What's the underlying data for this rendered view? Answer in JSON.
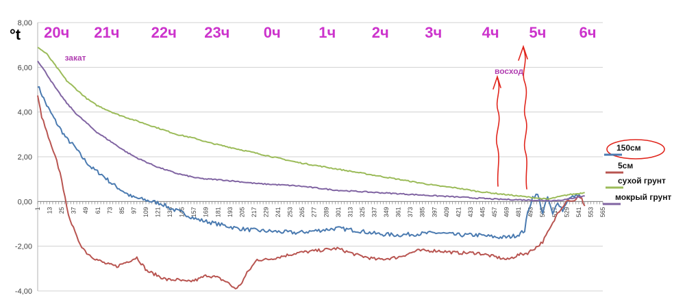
{
  "chart_data": {
    "type": "line",
    "ylabel": "°t",
    "ylim": [
      -4,
      8
    ],
    "yticks": [
      "8,00",
      "6,00",
      "4,00",
      "2,00",
      "0,00",
      "-2,00",
      "-4,00"
    ],
    "ytick_values": [
      8,
      6,
      4,
      2,
      0,
      -2,
      -4
    ],
    "xlim": [
      1,
      565
    ],
    "xticks": [
      1,
      13,
      25,
      37,
      49,
      61,
      73,
      85,
      97,
      109,
      121,
      133,
      145,
      157,
      169,
      181,
      193,
      205,
      217,
      229,
      241,
      253,
      265,
      277,
      289,
      301,
      313,
      325,
      337,
      349,
      361,
      373,
      385,
      397,
      409,
      421,
      433,
      445,
      457,
      469,
      481,
      493,
      505,
      517,
      529,
      541,
      553,
      565
    ],
    "hour_labels": [
      {
        "text": "20ч",
        "x": 20
      },
      {
        "text": "21ч",
        "x": 70
      },
      {
        "text": "22ч",
        "x": 127
      },
      {
        "text": "23ч",
        "x": 180
      },
      {
        "text": "0ч",
        "x": 235
      },
      {
        "text": "1ч",
        "x": 290
      },
      {
        "text": "2ч",
        "x": 343
      },
      {
        "text": "3ч",
        "x": 396
      },
      {
        "text": "4ч",
        "x": 453
      },
      {
        "text": "5ч",
        "x": 500
      },
      {
        "text": "6ч",
        "x": 550
      }
    ],
    "annotations": [
      {
        "text": "закат",
        "x": 28,
        "y": 6.3
      },
      {
        "text": "восход",
        "x": 457,
        "y": 5.7
      }
    ],
    "grid": true,
    "legend_position": "right",
    "series": [
      {
        "name": "150см",
        "color": "#4a7ab0",
        "x": [
          1,
          10,
          20,
          30,
          37,
          45,
          55,
          65,
          75,
          85,
          95,
          105,
          115,
          125,
          133,
          145,
          160,
          180,
          200,
          220,
          240,
          260,
          280,
          300,
          320,
          340,
          360,
          380,
          400,
          420,
          440,
          460,
          470,
          480,
          487,
          490,
          495,
          500,
          505,
          510,
          515,
          520,
          525,
          530,
          535,
          540,
          544
        ],
        "y": [
          5.2,
          4.3,
          3.5,
          2.8,
          2.5,
          2.0,
          1.5,
          1.2,
          0.8,
          0.5,
          0.2,
          0.1,
          0.0,
          -0.1,
          -0.3,
          -0.5,
          -0.8,
          -1.0,
          -1.2,
          -1.3,
          -1.35,
          -1.4,
          -1.3,
          -1.2,
          -1.3,
          -1.45,
          -1.5,
          -1.45,
          -1.4,
          -1.5,
          -1.5,
          -1.6,
          -1.6,
          -1.5,
          -1.3,
          -0.5,
          0.2,
          0.3,
          -0.5,
          0.2,
          -0.6,
          0.0,
          -0.4,
          0.1,
          0.2,
          0.3,
          0.2
        ]
      },
      {
        "name": "5см",
        "color": "#b85450",
        "x": [
          1,
          5,
          10,
          15,
          20,
          25,
          30,
          35,
          40,
          45,
          50,
          60,
          70,
          80,
          90,
          100,
          110,
          120,
          130,
          140,
          150,
          160,
          170,
          180,
          190,
          195,
          200,
          205,
          210,
          215,
          220,
          230,
          240,
          250,
          260,
          280,
          300,
          320,
          340,
          360,
          380,
          400,
          420,
          440,
          460,
          470,
          480,
          490,
          500,
          505,
          510,
          515,
          520,
          525,
          530,
          535,
          540,
          544,
          547
        ],
        "y": [
          4.7,
          3.8,
          3.1,
          2.4,
          1.8,
          1.0,
          -0.3,
          -1.0,
          -1.6,
          -2.0,
          -2.3,
          -2.6,
          -2.8,
          -2.9,
          -2.7,
          -2.5,
          -3.1,
          -3.3,
          -3.5,
          -3.5,
          -3.6,
          -3.5,
          -3.3,
          -3.4,
          -3.6,
          -3.8,
          -3.9,
          -3.6,
          -3.2,
          -2.9,
          -2.6,
          -2.6,
          -2.5,
          -2.4,
          -2.3,
          -2.2,
          -2.1,
          -2.4,
          -2.6,
          -2.5,
          -2.2,
          -2.2,
          -2.3,
          -2.3,
          -2.5,
          -2.6,
          -2.4,
          -2.3,
          -2.0,
          -1.8,
          -1.4,
          -1.0,
          -0.5,
          -0.2,
          0.1,
          0.0,
          0.2,
          0.1,
          -0.2
        ]
      },
      {
        "name": "сухой грунт",
        "color": "#9bbb59",
        "x": [
          1,
          10,
          20,
          30,
          40,
          50,
          60,
          70,
          80,
          90,
          100,
          110,
          120,
          130,
          140,
          150,
          160,
          170,
          180,
          190,
          200,
          210,
          220,
          230,
          240,
          250,
          260,
          280,
          300,
          320,
          340,
          360,
          380,
          400,
          420,
          440,
          460,
          480,
          500,
          510,
          520,
          530,
          540,
          547
        ],
        "y": [
          6.9,
          6.6,
          6.0,
          5.4,
          5.0,
          4.6,
          4.3,
          4.1,
          3.9,
          3.75,
          3.6,
          3.45,
          3.3,
          3.15,
          3.0,
          2.9,
          2.8,
          2.65,
          2.55,
          2.45,
          2.35,
          2.25,
          2.15,
          2.05,
          1.95,
          1.85,
          1.75,
          1.6,
          1.45,
          1.3,
          1.15,
          1.0,
          0.85,
          0.7,
          0.6,
          0.45,
          0.35,
          0.25,
          0.15,
          0.1,
          0.2,
          0.3,
          0.35,
          0.4
        ]
      },
      {
        "name": "мокрый грунт",
        "color": "#8064a2",
        "x": [
          1,
          10,
          20,
          30,
          40,
          50,
          60,
          70,
          80,
          90,
          100,
          110,
          120,
          130,
          140,
          150,
          160,
          170,
          180,
          200,
          220,
          240,
          260,
          280,
          300,
          320,
          340,
          360,
          380,
          400,
          420,
          440,
          460,
          480,
          500,
          510,
          520,
          530,
          540,
          547
        ],
        "y": [
          6.3,
          5.7,
          5.0,
          4.4,
          3.9,
          3.5,
          3.1,
          2.8,
          2.5,
          2.2,
          1.95,
          1.75,
          1.55,
          1.4,
          1.25,
          1.15,
          1.05,
          1.0,
          0.98,
          0.9,
          0.8,
          0.75,
          0.7,
          0.6,
          0.5,
          0.45,
          0.4,
          0.35,
          0.3,
          0.25,
          0.2,
          0.15,
          0.1,
          0.08,
          0.05,
          0.04,
          0.05,
          0.1,
          0.2,
          0.25
        ]
      }
    ]
  }
}
